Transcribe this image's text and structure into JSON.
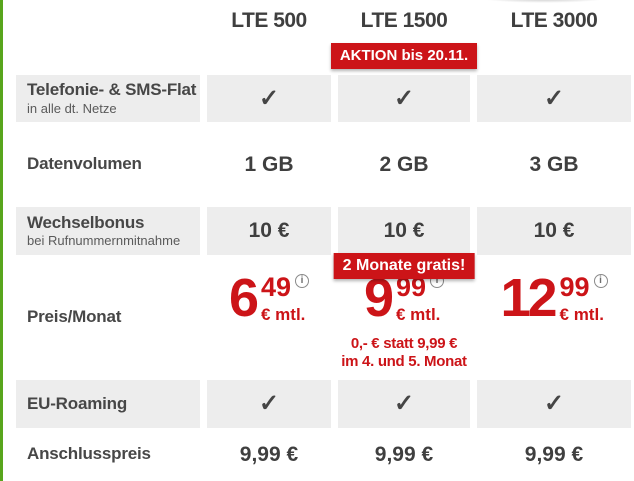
{
  "colors": {
    "accent_red": "#cc1418",
    "row_gray": "#ededed",
    "text_dark": "#3f3f3f",
    "green_stripe": "#58a51c"
  },
  "icons": {
    "check": "✓",
    "info": "i"
  },
  "header": {
    "plans": [
      {
        "name": "LTE 500"
      },
      {
        "name": "LTE 1500",
        "badge": "AKTION bis 20.11."
      },
      {
        "name": "LTE 3000"
      }
    ]
  },
  "rows": {
    "telefonie": {
      "label": "Telefonie- & SMS-Flat",
      "sublabel": "in alle dt. Netze",
      "included": [
        true,
        true,
        true
      ]
    },
    "datenvolumen": {
      "label": "Datenvolumen",
      "values": [
        "1 GB",
        "2 GB",
        "3 GB"
      ]
    },
    "wechselbonus": {
      "label": "Wechselbonus",
      "sublabel": "bei Rufnummernmitnahme",
      "values": [
        "10 €",
        "10 €",
        "10 €"
      ],
      "promo_badge": "2 Monate gratis!"
    },
    "preis": {
      "label": "Preis/Monat",
      "values": [
        {
          "euros": "6",
          "cents": "49",
          "unit": "€ mtl."
        },
        {
          "euros": "9",
          "cents": "99",
          "unit": "€ mtl.",
          "promo_line1": "0,- € statt 9,99 €",
          "promo_line2": "im 4. und 5. Monat"
        },
        {
          "euros": "12",
          "cents": "99",
          "unit": "€ mtl."
        }
      ]
    },
    "eu_roaming": {
      "label": "EU-Roaming",
      "included": [
        true,
        true,
        true
      ]
    },
    "anschlusspreis": {
      "label": "Anschlusspreis",
      "values": [
        "9,99 €",
        "9,99 €",
        "9,99 €"
      ]
    }
  }
}
